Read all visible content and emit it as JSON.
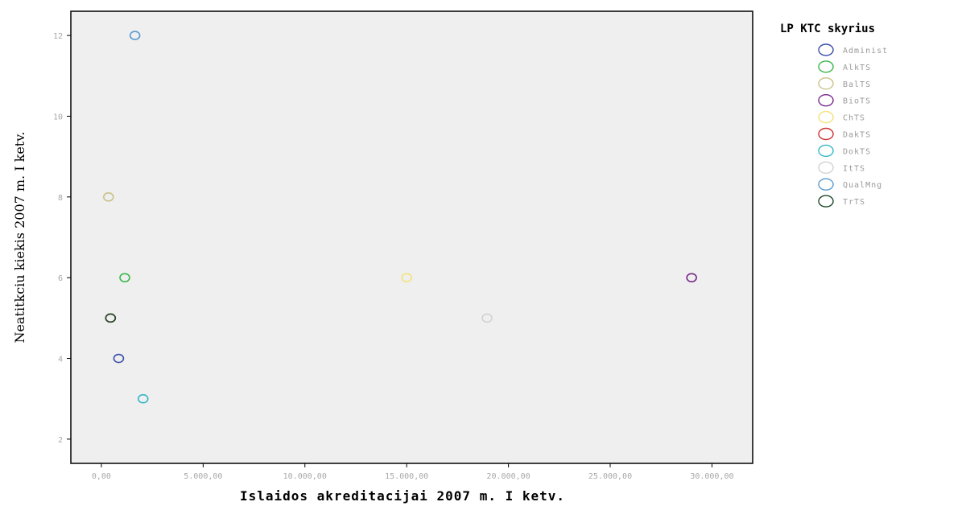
{
  "chart_data": {
    "type": "scatter",
    "title": "",
    "xlabel": "Islaidos akreditacijai 2007 m. I ketv.",
    "ylabel": "Neatitkciu kiekis 2007 m. I ketv.",
    "xlim": [
      -1500,
      32000
    ],
    "ylim": [
      1.4,
      12.6
    ],
    "x_ticks": [
      0,
      5000,
      10000,
      15000,
      20000,
      25000,
      30000
    ],
    "x_tick_labels": [
      "0,00",
      "5.000,00",
      "10.000,00",
      "15.000,00",
      "20.000,00",
      "25.000,00",
      "30.000,00"
    ],
    "y_ticks": [
      2,
      4,
      6,
      8,
      10,
      12
    ],
    "y_tick_labels": [
      "2",
      "4",
      "6",
      "8",
      "10",
      "12"
    ],
    "grid": false,
    "legend_title": "LP KTC skyrius",
    "legend_position": "right",
    "series": [
      {
        "name": "Administ",
        "color": "#3b4fa8",
        "points": [
          {
            "x": 850,
            "y": 4
          }
        ]
      },
      {
        "name": "AlkTS",
        "color": "#3cb84a",
        "points": [
          {
            "x": 1150,
            "y": 6
          }
        ]
      },
      {
        "name": "BalTS",
        "color": "#c9c28a",
        "points": [
          {
            "x": 350,
            "y": 8
          }
        ]
      },
      {
        "name": "BioTS",
        "color": "#7a2a8a",
        "points": [
          {
            "x": 29000,
            "y": 6
          }
        ]
      },
      {
        "name": "ChTS",
        "color": "#f2e27a",
        "points": [
          {
            "x": 15000,
            "y": 6
          }
        ]
      },
      {
        "name": "DakTS",
        "color": "#cc3333",
        "points": [
          {
            "x": 450,
            "y": 5
          }
        ]
      },
      {
        "name": "DokTS",
        "color": "#37b8c8",
        "points": [
          {
            "x": 2050,
            "y": 3
          }
        ]
      },
      {
        "name": "ItTS",
        "color": "#d2d2d2",
        "points": [
          {
            "x": 18950,
            "y": 5
          }
        ]
      },
      {
        "name": "QualMng",
        "color": "#5a9bd0",
        "points": [
          {
            "x": 1650,
            "y": 12
          }
        ]
      },
      {
        "name": "TrTS",
        "color": "#1f4a2a",
        "points": [
          {
            "x": 450,
            "y": 5
          }
        ]
      }
    ]
  }
}
